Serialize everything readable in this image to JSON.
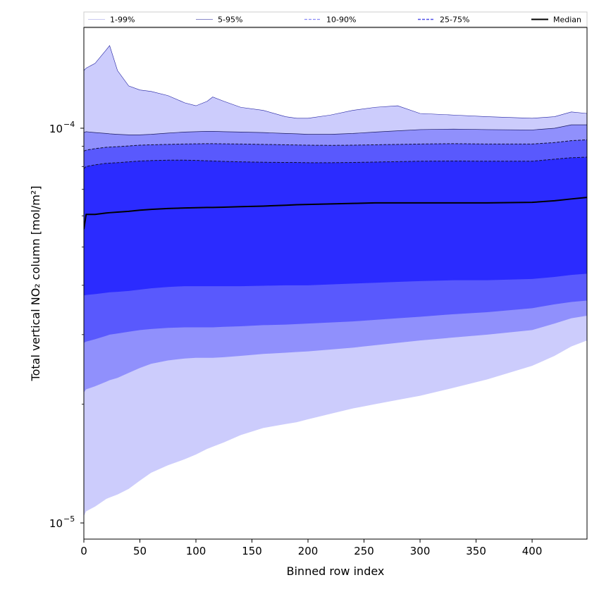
{
  "chart_data": {
    "type": "area",
    "title": "",
    "xlabel": "Binned row index",
    "ylabel": "Total vertical NO₂ column [mol/m²]",
    "xscale": "linear",
    "yscale": "log",
    "xlim": [
      0,
      449
    ],
    "ylim": [
      9.1e-06,
      0.00018
    ],
    "x_ticks": [
      0,
      50,
      100,
      150,
      200,
      250,
      300,
      350,
      400
    ],
    "y_major_ticks": [
      1e-05,
      0.0001
    ],
    "y_tick_labels": [
      "10",
      "10"
    ],
    "y_tick_exponents": [
      "−5",
      "−4"
    ],
    "legend_position": "top (above plot)",
    "legend": [
      {
        "label": "1-99%",
        "style": "thin light line"
      },
      {
        "label": "5-95%",
        "style": "thin line"
      },
      {
        "label": "10-90%",
        "style": "dashed"
      },
      {
        "label": "25-75%",
        "style": "dashed"
      },
      {
        "label": "Median",
        "style": "solid black"
      }
    ],
    "colors": {
      "band_1_99": "#ccccfc",
      "band_5_95": "#9090fc",
      "band_10_90": "#5959fd",
      "band_25_75": "#2b2bff",
      "median": "#000000",
      "p99_edge": "#1f1fa0"
    },
    "x": [
      0,
      2,
      10,
      20,
      23,
      30,
      40,
      50,
      60,
      75,
      90,
      100,
      110,
      115,
      125,
      140,
      160,
      180,
      190,
      200,
      220,
      240,
      260,
      280,
      300,
      330,
      360,
      400,
      420,
      435,
      449
    ],
    "series": [
      {
        "name": "p1",
        "values": [
          1.04e-05,
          1.07e-05,
          1.1e-05,
          1.15e-05,
          1.16e-05,
          1.18e-05,
          1.22e-05,
          1.28e-05,
          1.34e-05,
          1.4e-05,
          1.45e-05,
          1.49e-05,
          1.54e-05,
          1.56e-05,
          1.6e-05,
          1.67e-05,
          1.74e-05,
          1.78e-05,
          1.8e-05,
          1.83e-05,
          1.89e-05,
          1.95e-05,
          2e-05,
          2.05e-05,
          2.1e-05,
          2.2e-05,
          2.31e-05,
          2.5e-05,
          2.65e-05,
          2.8e-05,
          2.9e-05
        ]
      },
      {
        "name": "p5",
        "values": [
          2.14e-05,
          2.18e-05,
          2.22e-05,
          2.28e-05,
          2.3e-05,
          2.33e-05,
          2.4e-05,
          2.47e-05,
          2.53e-05,
          2.58e-05,
          2.61e-05,
          2.62e-05,
          2.62e-05,
          2.62e-05,
          2.63e-05,
          2.65e-05,
          2.68e-05,
          2.7e-05,
          2.71e-05,
          2.72e-05,
          2.75e-05,
          2.78e-05,
          2.82e-05,
          2.86e-05,
          2.9e-05,
          2.95e-05,
          3e-05,
          3.08e-05,
          3.2e-05,
          3.3e-05,
          3.35e-05
        ]
      },
      {
        "name": "p10",
        "values": [
          2.86e-05,
          2.88e-05,
          2.92e-05,
          2.98e-05,
          3e-05,
          3.02e-05,
          3.05e-05,
          3.08e-05,
          3.1e-05,
          3.12e-05,
          3.13e-05,
          3.13e-05,
          3.13e-05,
          3.13e-05,
          3.14e-05,
          3.15e-05,
          3.17e-05,
          3.18e-05,
          3.19e-05,
          3.2e-05,
          3.22e-05,
          3.24e-05,
          3.27e-05,
          3.3e-05,
          3.33e-05,
          3.38e-05,
          3.42e-05,
          3.5e-05,
          3.58e-05,
          3.63e-05,
          3.66e-05
        ]
      },
      {
        "name": "p25",
        "values": [
          3.77e-05,
          3.78e-05,
          3.8e-05,
          3.83e-05,
          3.84e-05,
          3.85e-05,
          3.87e-05,
          3.9e-05,
          3.93e-05,
          3.96e-05,
          3.98e-05,
          3.98e-05,
          3.98e-05,
          3.98e-05,
          3.98e-05,
          3.98e-05,
          3.99e-05,
          4e-05,
          4e-05,
          4e-05,
          4.02e-05,
          4.04e-05,
          4.06e-05,
          4.08e-05,
          4.1e-05,
          4.12e-05,
          4.12e-05,
          4.15e-05,
          4.2e-05,
          4.25e-05,
          4.28e-05
        ]
      },
      {
        "name": "p50",
        "values": [
          5.55e-05,
          6.05e-05,
          6.05e-05,
          6.1e-05,
          6.11e-05,
          6.13e-05,
          6.16e-05,
          6.2e-05,
          6.23e-05,
          6.26e-05,
          6.28e-05,
          6.29e-05,
          6.3e-05,
          6.3e-05,
          6.31e-05,
          6.33e-05,
          6.35e-05,
          6.38e-05,
          6.4e-05,
          6.41e-05,
          6.43e-05,
          6.45e-05,
          6.47e-05,
          6.47e-05,
          6.47e-05,
          6.47e-05,
          6.47e-05,
          6.49e-05,
          6.55e-05,
          6.62e-05,
          6.68e-05
        ]
      },
      {
        "name": "p75",
        "values": [
          7.9e-05,
          8e-05,
          8.08e-05,
          8.15e-05,
          8.16e-05,
          8.18e-05,
          8.22e-05,
          8.26e-05,
          8.28e-05,
          8.3e-05,
          8.3e-05,
          8.29e-05,
          8.27e-05,
          8.26e-05,
          8.24e-05,
          8.22e-05,
          8.2e-05,
          8.19e-05,
          8.19e-05,
          8.18e-05,
          8.18e-05,
          8.19e-05,
          8.21e-05,
          8.23e-05,
          8.25e-05,
          8.26e-05,
          8.25e-05,
          8.25e-05,
          8.35e-05,
          8.42e-05,
          8.45e-05
        ]
      },
      {
        "name": "p90",
        "values": [
          8.75e-05,
          8.8e-05,
          8.88e-05,
          8.95e-05,
          8.96e-05,
          8.98e-05,
          9.02e-05,
          9.06e-05,
          9.08e-05,
          9.1e-05,
          9.12e-05,
          9.13e-05,
          9.14e-05,
          9.14e-05,
          9.13e-05,
          9.12e-05,
          9.1e-05,
          9.08e-05,
          9.07e-05,
          9.06e-05,
          9.05e-05,
          9.06e-05,
          9.08e-05,
          9.1e-05,
          9.12e-05,
          9.14e-05,
          9.12e-05,
          9.12e-05,
          9.2e-05,
          9.3e-05,
          9.35e-05
        ]
      },
      {
        "name": "p95",
        "values": [
          9.75e-05,
          9.8e-05,
          9.75e-05,
          9.7e-05,
          9.68e-05,
          9.65e-05,
          9.62e-05,
          9.62e-05,
          9.65e-05,
          9.72e-05,
          9.78e-05,
          9.8e-05,
          9.82e-05,
          9.82e-05,
          9.8e-05,
          9.78e-05,
          9.75e-05,
          9.7e-05,
          9.68e-05,
          9.65e-05,
          9.65e-05,
          9.7e-05,
          9.78e-05,
          9.85e-05,
          9.92e-05,
          9.95e-05,
          9.92e-05,
          9.9e-05,
          0.0001,
          0.000102,
          0.000102
        ]
      },
      {
        "name": "p99",
        "values": [
          0.00014,
          0.000142,
          0.000146,
          0.000158,
          0.000162,
          0.00014,
          0.000128,
          0.000125,
          0.000124,
          0.000121,
          0.000116,
          0.000114,
          0.000117,
          0.00012,
          0.000117,
          0.000113,
          0.000111,
          0.000107,
          0.000106,
          0.000106,
          0.000108,
          0.000111,
          0.000113,
          0.000114,
          0.000109,
          0.000108,
          0.000107,
          0.000106,
          0.000107,
          0.00011,
          0.000109
        ]
      }
    ]
  }
}
